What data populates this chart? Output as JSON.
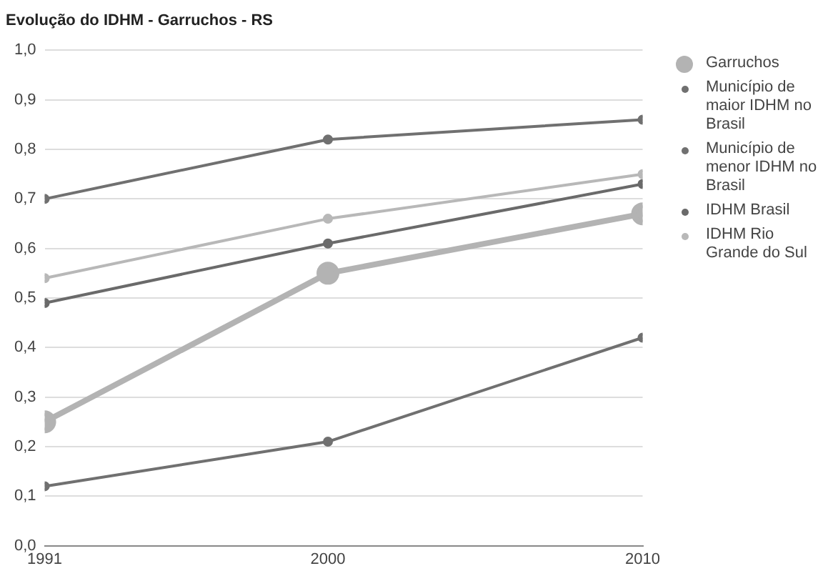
{
  "chart_data": {
    "type": "line",
    "title": "Evolução do IDHM - Garruchos - RS",
    "x": [
      1991,
      2000,
      2010
    ],
    "series": [
      {
        "name": "Garruchos",
        "color": "#b3b3b3",
        "values": [
          0.25,
          0.55,
          0.67
        ]
      },
      {
        "name": "Município de maior IDHM no Brasil",
        "color": "#707070",
        "values": [
          0.7,
          0.82,
          0.86
        ]
      },
      {
        "name": "Município de menor IDHM no Brasil",
        "color": "#707070",
        "values": [
          0.12,
          0.21,
          0.42
        ]
      },
      {
        "name": "IDHM Brasil",
        "color": "#6a6a6a",
        "values": [
          0.49,
          0.61,
          0.73
        ]
      },
      {
        "name": "IDHM Rio Grande do Sul",
        "color": "#b8b8b8",
        "values": [
          0.54,
          0.66,
          0.75
        ]
      }
    ],
    "xlim": [
      1991,
      2010
    ],
    "xticks": [
      1991,
      2000,
      2010
    ],
    "ylim": [
      0,
      1
    ],
    "yticks": [
      {
        "value": 0,
        "label": "0,0"
      },
      {
        "value": 0.1,
        "label": "0,1"
      },
      {
        "value": 0.2,
        "label": "0,2"
      },
      {
        "value": 0.3,
        "label": "0,3"
      },
      {
        "value": 0.4,
        "label": "0,4"
      },
      {
        "value": 0.5,
        "label": "0,5"
      },
      {
        "value": 0.6,
        "label": "0,6"
      },
      {
        "value": 0.7,
        "label": "0,7"
      },
      {
        "value": 0.8,
        "label": "0,8"
      },
      {
        "value": 0.9,
        "label": "0,9"
      },
      {
        "value": 1,
        "label": "1,0"
      }
    ],
    "grid": "y",
    "legend": "right",
    "marker": "circle",
    "line_style": "solid"
  }
}
